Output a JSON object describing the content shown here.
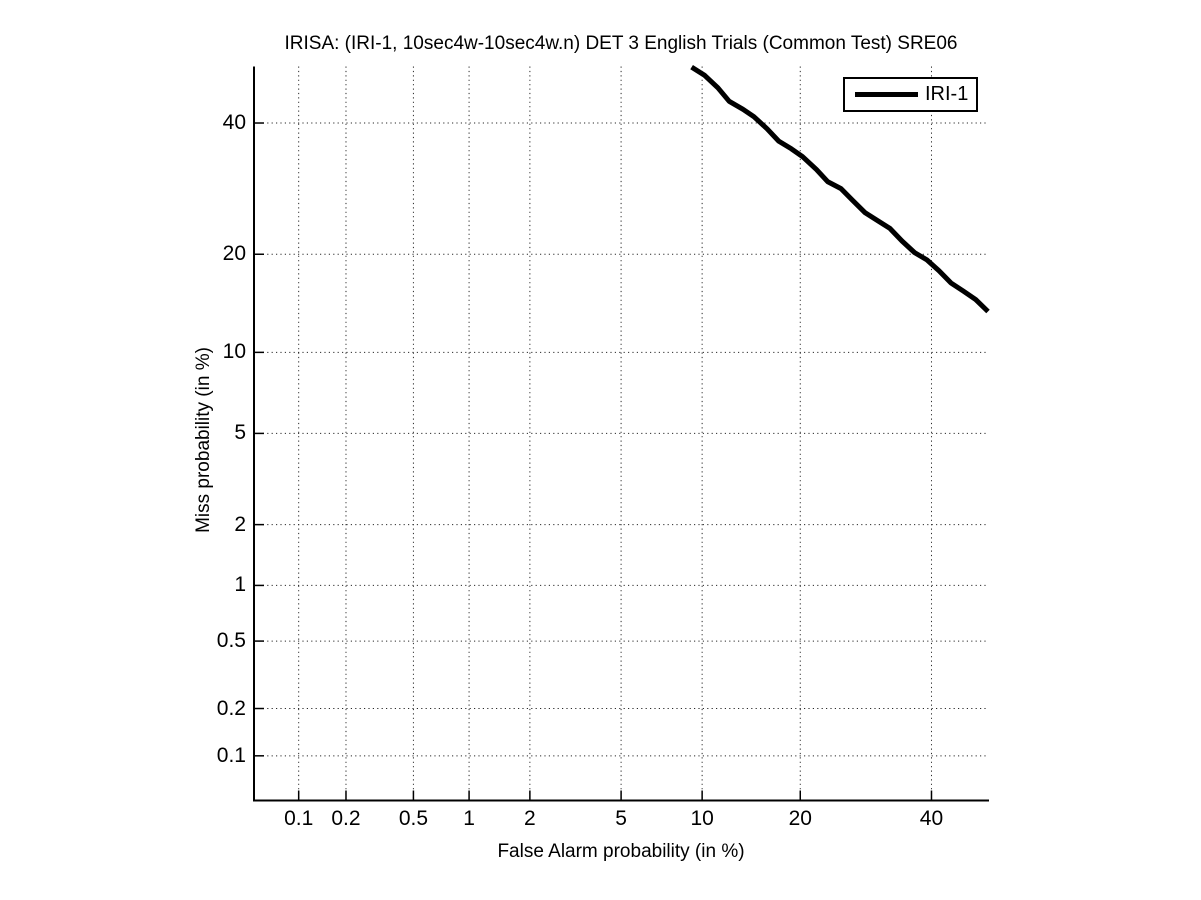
{
  "chart_data": {
    "type": "line",
    "subtype": "DET curve (normal-deviate / probit scale on both axes)",
    "title": "IRISA: (IRI-1, 10sec4w-10sec4w.n) DET 3 English Trials (Common Test) SRE06",
    "xlabel": "False Alarm probability (in %)",
    "ylabel": "Miss probability (in %)",
    "xlim_percent": [
      0.05,
      50
    ],
    "ylim_percent": [
      0.05,
      50
    ],
    "x_ticks_percent": [
      0.1,
      0.2,
      0.5,
      1,
      2,
      5,
      10,
      20,
      40
    ],
    "y_ticks_percent": [
      0.1,
      0.2,
      0.5,
      1,
      2,
      5,
      10,
      20,
      40
    ],
    "x_tick_labels": [
      "0.1",
      "0.2",
      "0.5",
      "1",
      "2",
      "5",
      "10",
      "20",
      "40"
    ],
    "y_tick_labels": [
      "0.1",
      "0.2",
      "0.5",
      "1",
      "2",
      "5",
      "10",
      "20",
      "40"
    ],
    "grid": "dotted",
    "legend": {
      "position": "top-right",
      "entries": [
        {
          "label": "IRI-1",
          "color": "#000000",
          "line_width": 5
        }
      ]
    },
    "series": [
      {
        "name": "IRI-1",
        "color": "#000000",
        "line_width": 5,
        "points_fa_miss_percent": [
          [
            9.2,
            49.9
          ],
          [
            10.2,
            48.4
          ],
          [
            11.3,
            46.2
          ],
          [
            12.3,
            43.8
          ],
          [
            13.6,
            42.4
          ],
          [
            14.7,
            41.1
          ],
          [
            16.1,
            39.0
          ],
          [
            17.4,
            36.9
          ],
          [
            18.9,
            35.6
          ],
          [
            20.3,
            34.3
          ],
          [
            22.1,
            32.2
          ],
          [
            23.6,
            30.3
          ],
          [
            25.5,
            29.2
          ],
          [
            27.1,
            27.5
          ],
          [
            29.1,
            25.6
          ],
          [
            31.0,
            24.5
          ],
          [
            33.0,
            23.4
          ],
          [
            35.0,
            21.7
          ],
          [
            37.1,
            20.2
          ],
          [
            39.2,
            19.3
          ],
          [
            41.3,
            18.0
          ],
          [
            43.4,
            16.6
          ],
          [
            45.6,
            15.7
          ],
          [
            47.8,
            14.8
          ],
          [
            50.0,
            13.6
          ]
        ]
      }
    ]
  },
  "colors": {
    "background": "#ffffff",
    "axis": "#000000",
    "grid_dots": "#2a2a2a",
    "text": "#000000",
    "curve": "#000000"
  }
}
